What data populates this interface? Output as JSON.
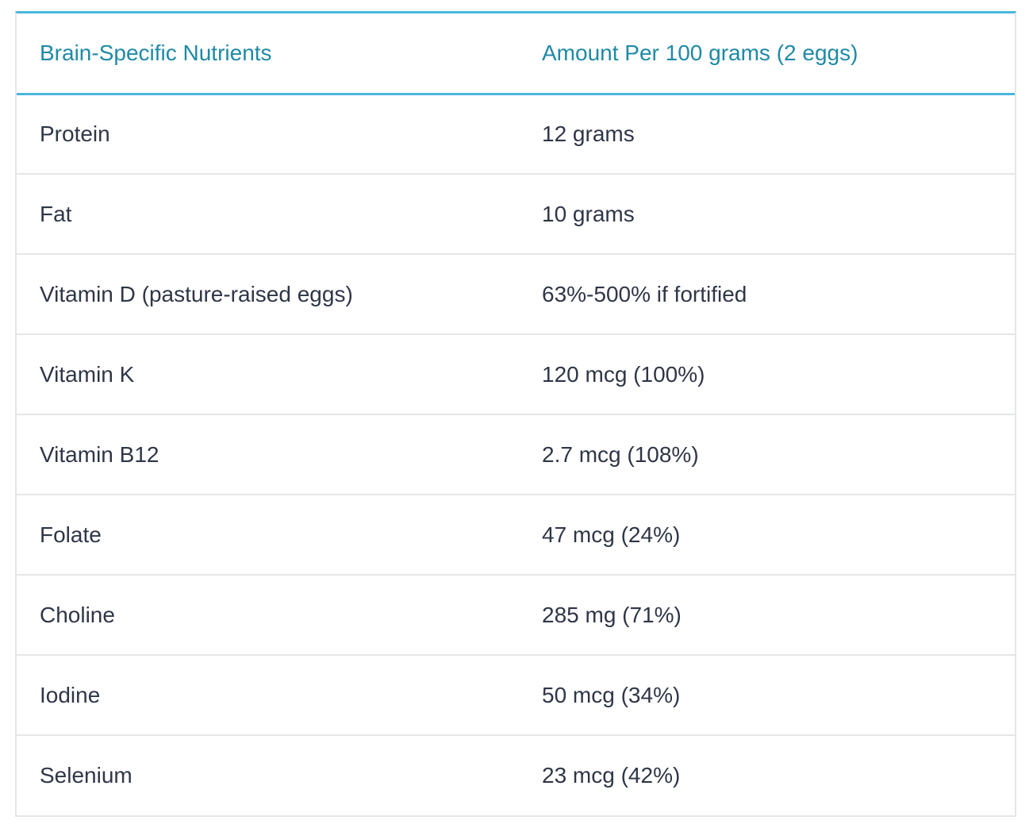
{
  "table": {
    "headers": [
      "Brain-Specific Nutrients",
      "Amount Per 100 grams (2 eggs)"
    ],
    "rows": [
      [
        "Protein",
        "12 grams"
      ],
      [
        "Fat",
        "10 grams"
      ],
      [
        "Vitamin D (pasture-raised eggs)",
        "63%-500% if fortified"
      ],
      [
        "Vitamin K",
        "120 mcg (100%)"
      ],
      [
        "Vitamin B12",
        "2.7 mcg (108%)"
      ],
      [
        "Folate",
        "47 mcg (24%)"
      ],
      [
        "Choline",
        "285 mg (71%)"
      ],
      [
        "Iodine",
        "50 mcg (34%)"
      ],
      [
        "Selenium",
        "23 mcg (42%)"
      ]
    ]
  },
  "colors": {
    "accent": "#4ab7dd",
    "header_text": "#1f8aa6",
    "body_text": "#2f3647",
    "row_divider": "#e4e6e8"
  }
}
